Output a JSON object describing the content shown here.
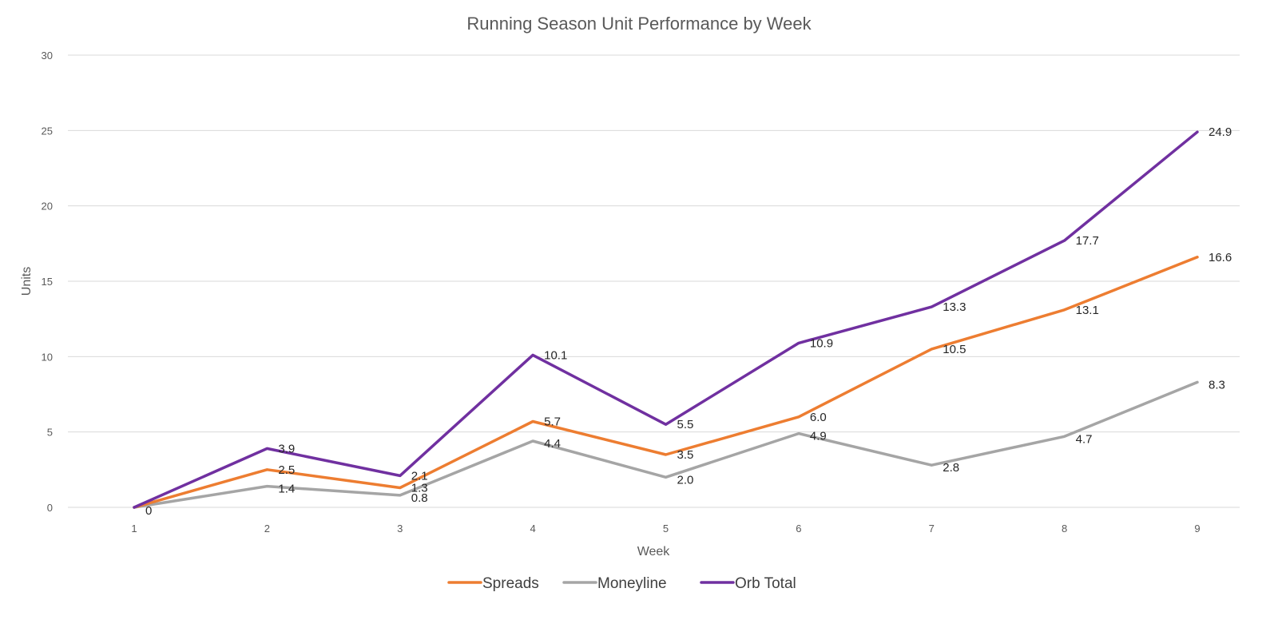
{
  "chart_data": {
    "type": "line",
    "title": "Running Season Unit Performance by Week",
    "xlabel": "Week",
    "ylabel": "Units",
    "ylim": [
      0,
      30
    ],
    "yticks": [
      "0",
      "5",
      "10",
      "15",
      "20",
      "25",
      "30"
    ],
    "categories": [
      "1",
      "2",
      "3",
      "4",
      "5",
      "6",
      "7",
      "8",
      "9"
    ],
    "grid": true,
    "legend_position": "bottom",
    "series": [
      {
        "name": "Spreads",
        "color": "#ed7d31",
        "values": [
          0,
          2.5,
          1.3,
          5.7,
          3.5,
          6.0,
          10.5,
          13.1,
          16.6
        ],
        "labels": [
          "",
          "2.5",
          "1.3",
          "5.7",
          "3.5",
          "6.0",
          "10.5",
          "13.1",
          "16.6"
        ]
      },
      {
        "name": "Moneyline",
        "color": "#a5a5a5",
        "values": [
          0,
          1.4,
          0.8,
          4.4,
          2.0,
          4.9,
          2.8,
          4.7,
          8.3
        ],
        "labels": [
          "",
          "1.4",
          "0.8",
          "4.4",
          "2.0",
          "4.9",
          "2.8",
          "4.7",
          "8.3"
        ]
      },
      {
        "name": "Orb Total",
        "color": "#7030a0",
        "values": [
          0,
          3.9,
          2.1,
          10.1,
          5.5,
          10.9,
          13.3,
          17.7,
          24.9
        ],
        "labels": [
          "0",
          "3.9",
          "2.1",
          "10.1",
          "5.5",
          "10.9",
          "13.3",
          "17.7",
          "24.9"
        ]
      }
    ]
  }
}
